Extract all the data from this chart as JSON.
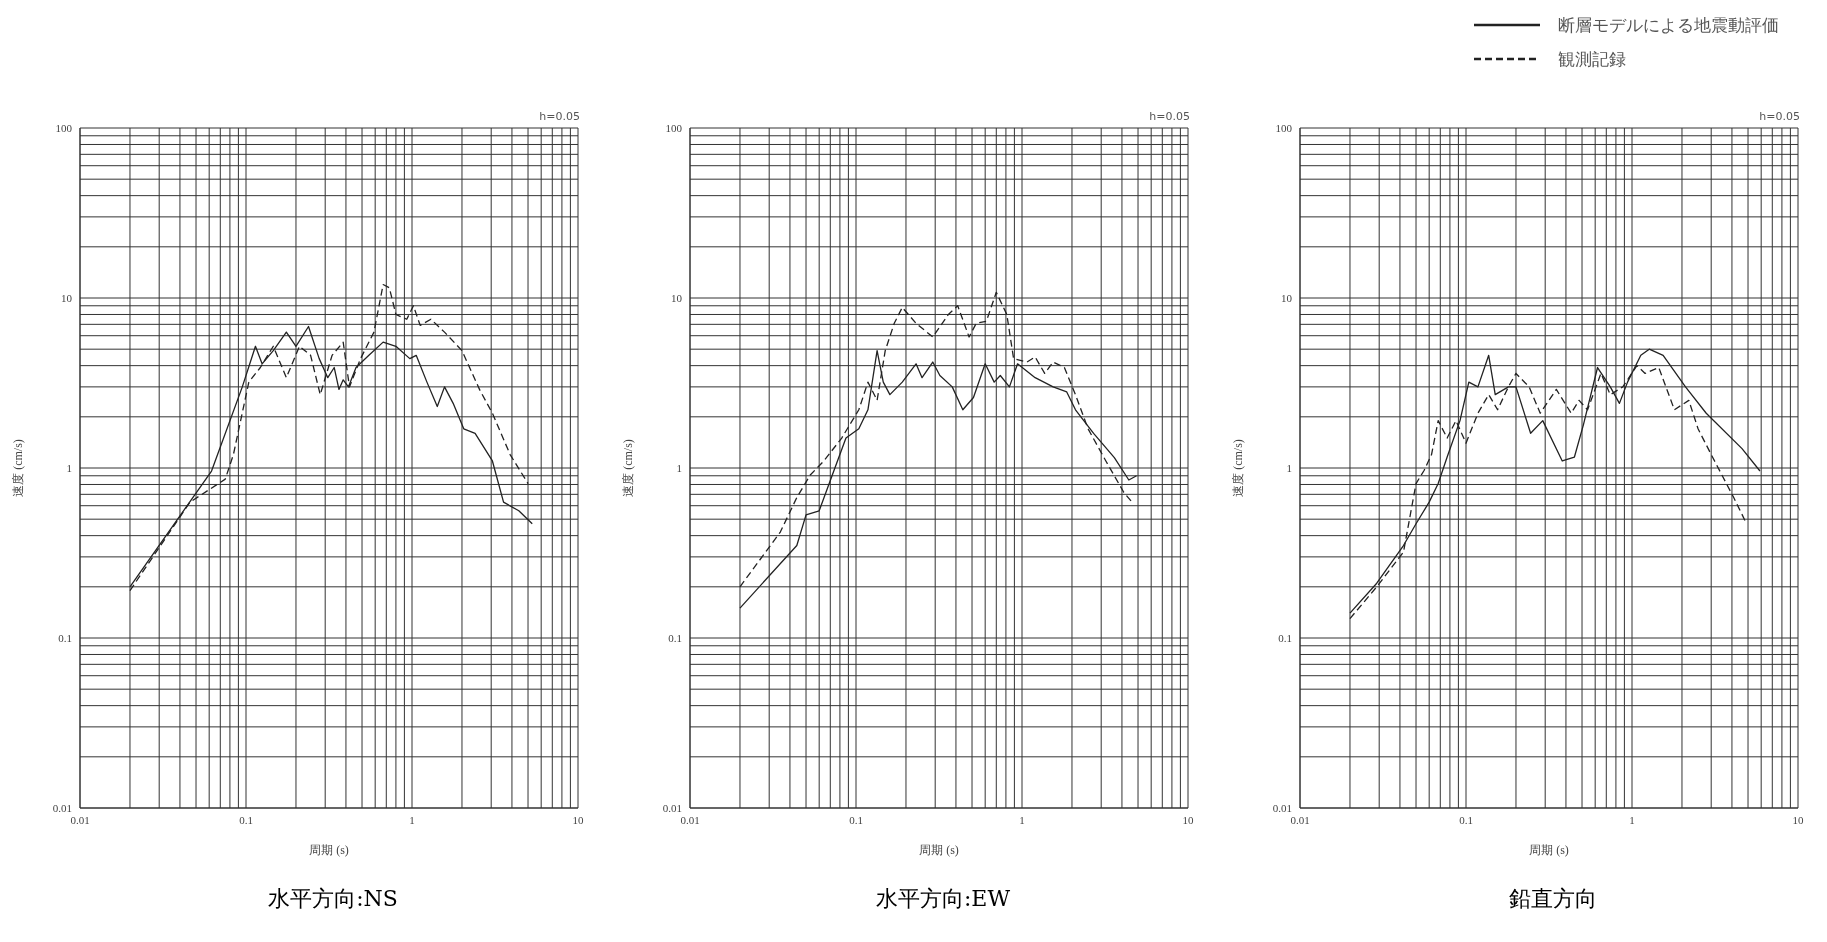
{
  "chart_data": [
    {
      "type": "line",
      "title": "水平方向:NS",
      "xlabel": "周期 (s)",
      "ylabel": "速度 (cm/s)",
      "annotations": [
        "h=0.05"
      ],
      "log": "xy",
      "grid": true,
      "legend": false,
      "xlim": [
        0.01,
        10
      ],
      "ylim": [
        0.01,
        100
      ],
      "xticks": [
        0.01,
        {
          "value": 0.02,
          "label": null
        },
        {
          "value": 0.03,
          "label": null
        },
        {
          "value": 0.04,
          "label": null
        },
        {
          "value": 0.05,
          "label": null
        },
        {
          "value": 0.06,
          "label": null
        },
        {
          "value": 0.07,
          "label": null
        },
        {
          "value": 0.08,
          "label": null
        },
        {
          "value": 0.09,
          "label": null
        },
        0.1,
        {
          "value": 0.2,
          "label": null
        },
        {
          "value": 0.3,
          "label": null
        },
        {
          "value": 0.4,
          "label": null
        },
        {
          "value": 0.5,
          "label": null
        },
        {
          "value": 0.6,
          "label": null
        },
        {
          "value": 0.7,
          "label": null
        },
        {
          "value": 0.8,
          "label": null
        },
        {
          "value": 0.9,
          "label": null
        },
        1,
        {
          "value": 2,
          "label": null
        },
        {
          "value": 3,
          "label": null
        },
        {
          "value": 4,
          "label": null
        },
        {
          "value": 5,
          "label": null
        },
        {
          "value": 6,
          "label": null
        },
        {
          "value": 7,
          "label": null
        },
        {
          "value": 8,
          "label": null
        },
        {
          "value": 9,
          "label": null
        },
        10
      ],
      "yticks": [
        0.01,
        {
          "value": 0.02,
          "label": null
        },
        {
          "value": 0.03,
          "label": null
        },
        {
          "value": 0.04,
          "label": null
        },
        {
          "value": 0.05,
          "label": null
        },
        {
          "value": 0.06,
          "label": null
        },
        {
          "value": 0.07,
          "label": null
        },
        {
          "value": 0.08,
          "label": null
        },
        {
          "value": 0.09,
          "label": null
        },
        0.1,
        {
          "value": 0.2,
          "label": null
        },
        {
          "value": 0.3,
          "label": null
        },
        {
          "value": 0.4,
          "label": null
        },
        {
          "value": 0.5,
          "label": null
        },
        {
          "value": 0.6,
          "label": null
        },
        {
          "value": 0.7,
          "label": null
        },
        {
          "value": 0.8,
          "label": null
        },
        {
          "value": 0.9,
          "label": null
        },
        1,
        {
          "value": 2,
          "label": null
        },
        {
          "value": 3,
          "label": null
        },
        {
          "value": 4,
          "label": null
        },
        {
          "value": 5,
          "label": null
        },
        {
          "value": 6,
          "label": null
        },
        {
          "value": 7,
          "label": null
        },
        {
          "value": 8,
          "label": null
        },
        {
          "value": 9,
          "label": null
        },
        10,
        {
          "value": 20,
          "label": null
        },
        {
          "value": 30,
          "label": null
        },
        {
          "value": 40,
          "label": null
        },
        {
          "value": 50,
          "label": null
        },
        {
          "value": 60,
          "label": null
        },
        {
          "value": 70,
          "label": null
        },
        {
          "value": 80,
          "label": null
        },
        {
          "value": 90,
          "label": null
        },
        100
      ],
      "series": [
        {
          "color": "#222222",
          "line_style": "solid",
          "x": [
            0.02,
            0.062,
            0.095,
            0.114,
            0.125,
            0.146,
            0.175,
            0.2,
            0.238,
            0.276,
            0.311,
            0.34,
            0.363,
            0.385,
            0.414,
            0.46,
            0.55,
            0.67,
            0.8,
            0.97,
            1.06,
            1.23,
            1.42,
            1.57,
            1.77,
            2.05,
            2.4,
            3.05,
            3.56,
            4.4,
            5.3
          ],
          "values": [
            0.2,
            0.96,
            3.0,
            5.2,
            4.1,
            4.9,
            6.3,
            5.2,
            6.8,
            4.4,
            3.4,
            3.9,
            2.9,
            3.3,
            3.0,
            3.9,
            4.6,
            5.5,
            5.2,
            4.4,
            4.6,
            3.2,
            2.3,
            3.0,
            2.4,
            1.7,
            1.6,
            1.1,
            0.63,
            0.56,
            0.47
          ]
        },
        {
          "color": "#222222",
          "line_style": "dashed",
          "x": [
            0.02,
            0.046,
            0.075,
            0.084,
            0.104,
            0.122,
            0.146,
            0.175,
            0.21,
            0.245,
            0.28,
            0.33,
            0.385,
            0.42,
            0.49,
            0.59,
            0.67,
            0.73,
            0.8,
            0.93,
            1.02,
            1.12,
            1.3,
            1.57,
            2.0,
            2.55,
            3.05,
            3.9,
            5.0
          ],
          "values": [
            0.19,
            0.63,
            0.86,
            1.2,
            3.2,
            3.9,
            5.2,
            3.4,
            5.2,
            4.6,
            2.7,
            4.6,
            5.5,
            3.0,
            4.4,
            6.3,
            12,
            11.5,
            8.0,
            7.5,
            9.0,
            6.9,
            7.5,
            6.3,
            4.9,
            2.9,
            2.1,
            1.2,
            0.81
          ]
        }
      ]
    },
    {
      "type": "line",
      "title": "水平方向:EW",
      "xlabel": "周期 (s)",
      "ylabel": "速度 (cm/s)",
      "annotations": [
        "h=0.05"
      ],
      "log": "xy",
      "grid": true,
      "legend": false,
      "xlim": [
        0.01,
        10
      ],
      "ylim": [
        0.01,
        100
      ],
      "xticks": [
        0.01,
        {
          "value": 0.02,
          "label": null
        },
        {
          "value": 0.03,
          "label": null
        },
        {
          "value": 0.04,
          "label": null
        },
        {
          "value": 0.05,
          "label": null
        },
        {
          "value": 0.06,
          "label": null
        },
        {
          "value": 0.07,
          "label": null
        },
        {
          "value": 0.08,
          "label": null
        },
        {
          "value": 0.09,
          "label": null
        },
        0.1,
        {
          "value": 0.2,
          "label": null
        },
        {
          "value": 0.3,
          "label": null
        },
        {
          "value": 0.4,
          "label": null
        },
        {
          "value": 0.5,
          "label": null
        },
        {
          "value": 0.6,
          "label": null
        },
        {
          "value": 0.7,
          "label": null
        },
        {
          "value": 0.8,
          "label": null
        },
        {
          "value": 0.9,
          "label": null
        },
        1,
        {
          "value": 2,
          "label": null
        },
        {
          "value": 3,
          "label": null
        },
        {
          "value": 4,
          "label": null
        },
        {
          "value": 5,
          "label": null
        },
        {
          "value": 6,
          "label": null
        },
        {
          "value": 7,
          "label": null
        },
        {
          "value": 8,
          "label": null
        },
        {
          "value": 9,
          "label": null
        },
        10
      ],
      "yticks": [
        0.01,
        {
          "value": 0.02,
          "label": null
        },
        {
          "value": 0.03,
          "label": null
        },
        {
          "value": 0.04,
          "label": null
        },
        {
          "value": 0.05,
          "label": null
        },
        {
          "value": 0.06,
          "label": null
        },
        {
          "value": 0.07,
          "label": null
        },
        {
          "value": 0.08,
          "label": null
        },
        {
          "value": 0.09,
          "label": null
        },
        0.1,
        {
          "value": 0.2,
          "label": null
        },
        {
          "value": 0.3,
          "label": null
        },
        {
          "value": 0.4,
          "label": null
        },
        {
          "value": 0.5,
          "label": null
        },
        {
          "value": 0.6,
          "label": null
        },
        {
          "value": 0.7,
          "label": null
        },
        {
          "value": 0.8,
          "label": null
        },
        {
          "value": 0.9,
          "label": null
        },
        1,
        {
          "value": 2,
          "label": null
        },
        {
          "value": 3,
          "label": null
        },
        {
          "value": 4,
          "label": null
        },
        {
          "value": 5,
          "label": null
        },
        {
          "value": 6,
          "label": null
        },
        {
          "value": 7,
          "label": null
        },
        {
          "value": 8,
          "label": null
        },
        {
          "value": 9,
          "label": null
        },
        10,
        {
          "value": 20,
          "label": null
        },
        {
          "value": 30,
          "label": null
        },
        {
          "value": 40,
          "label": null
        },
        {
          "value": 50,
          "label": null
        },
        {
          "value": 60,
          "label": null
        },
        {
          "value": 70,
          "label": null
        },
        {
          "value": 80,
          "label": null
        },
        {
          "value": 90,
          "label": null
        },
        100
      ],
      "series": [
        {
          "color": "#222222",
          "line_style": "solid",
          "x": [
            0.02,
            0.044,
            0.05,
            0.06,
            0.072,
            0.087,
            0.104,
            0.118,
            0.134,
            0.146,
            0.16,
            0.19,
            0.23,
            0.25,
            0.29,
            0.32,
            0.38,
            0.44,
            0.51,
            0.6,
            0.68,
            0.74,
            0.84,
            0.94,
            1.2,
            1.54,
            1.86,
            2.1,
            2.7,
            3.6,
            4.4,
            4.9
          ],
          "values": [
            0.15,
            0.35,
            0.53,
            0.56,
            0.91,
            1.5,
            1.7,
            2.2,
            4.9,
            3.2,
            2.7,
            3.2,
            4.1,
            3.4,
            4.2,
            3.5,
            3.0,
            2.2,
            2.6,
            4.1,
            3.2,
            3.5,
            3.0,
            4.1,
            3.4,
            3.0,
            2.8,
            2.2,
            1.6,
            1.15,
            0.85,
            0.9
          ]
        },
        {
          "color": "#222222",
          "line_style": "dashed",
          "x": [
            0.02,
            0.035,
            0.044,
            0.053,
            0.064,
            0.082,
            0.104,
            0.118,
            0.134,
            0.15,
            0.17,
            0.19,
            0.23,
            0.29,
            0.36,
            0.41,
            0.48,
            0.53,
            0.61,
            0.7,
            0.81,
            0.89,
            1.07,
            1.2,
            1.37,
            1.54,
            1.8,
            2.1,
            2.5,
            3.2,
            4.1,
            4.6
          ],
          "values": [
            0.2,
            0.42,
            0.67,
            0.91,
            1.1,
            1.5,
            2.2,
            3.2,
            2.5,
            4.9,
            7.1,
            8.8,
            7.1,
            5.9,
            8.0,
            9.0,
            5.9,
            7.1,
            7.3,
            10.8,
            8.0,
            4.4,
            4.2,
            4.5,
            3.6,
            4.2,
            3.9,
            2.7,
            1.7,
            1.1,
            0.72,
            0.63
          ]
        }
      ]
    },
    {
      "type": "line",
      "title": "鉛直方向",
      "xlabel": "周期 (s)",
      "ylabel": "速度 (cm/s)",
      "annotations": [
        "h=0.05"
      ],
      "log": "xy",
      "grid": true,
      "legend": "top right",
      "xlim": [
        0.01,
        10
      ],
      "ylim": [
        0.01,
        100
      ],
      "xticks": [
        0.01,
        {
          "value": 0.02,
          "label": null
        },
        {
          "value": 0.03,
          "label": null
        },
        {
          "value": 0.04,
          "label": null
        },
        {
          "value": 0.05,
          "label": null
        },
        {
          "value": 0.06,
          "label": null
        },
        {
          "value": 0.07,
          "label": null
        },
        {
          "value": 0.08,
          "label": null
        },
        {
          "value": 0.09,
          "label": null
        },
        0.1,
        {
          "value": 0.2,
          "label": null
        },
        {
          "value": 0.3,
          "label": null
        },
        {
          "value": 0.4,
          "label": null
        },
        {
          "value": 0.5,
          "label": null
        },
        {
          "value": 0.6,
          "label": null
        },
        {
          "value": 0.7,
          "label": null
        },
        {
          "value": 0.8,
          "label": null
        },
        {
          "value": 0.9,
          "label": null
        },
        1,
        {
          "value": 2,
          "label": null
        },
        {
          "value": 3,
          "label": null
        },
        {
          "value": 4,
          "label": null
        },
        {
          "value": 5,
          "label": null
        },
        {
          "value": 6,
          "label": null
        },
        {
          "value": 7,
          "label": null
        },
        {
          "value": 8,
          "label": null
        },
        {
          "value": 9,
          "label": null
        },
        10
      ],
      "yticks": [
        0.01,
        {
          "value": 0.02,
          "label": null
        },
        {
          "value": 0.03,
          "label": null
        },
        {
          "value": 0.04,
          "label": null
        },
        {
          "value": 0.05,
          "label": null
        },
        {
          "value": 0.06,
          "label": null
        },
        {
          "value": 0.07,
          "label": null
        },
        {
          "value": 0.08,
          "label": null
        },
        {
          "value": 0.09,
          "label": null
        },
        0.1,
        {
          "value": 0.2,
          "label": null
        },
        {
          "value": 0.3,
          "label": null
        },
        {
          "value": 0.4,
          "label": null
        },
        {
          "value": 0.5,
          "label": null
        },
        {
          "value": 0.6,
          "label": null
        },
        {
          "value": 0.7,
          "label": null
        },
        {
          "value": 0.8,
          "label": null
        },
        {
          "value": 0.9,
          "label": null
        },
        1,
        {
          "value": 2,
          "label": null
        },
        {
          "value": 3,
          "label": null
        },
        {
          "value": 4,
          "label": null
        },
        {
          "value": 5,
          "label": null
        },
        {
          "value": 6,
          "label": null
        },
        {
          "value": 7,
          "label": null
        },
        {
          "value": 8,
          "label": null
        },
        {
          "value": 9,
          "label": null
        },
        10,
        {
          "value": 20,
          "label": null
        },
        {
          "value": 30,
          "label": null
        },
        {
          "value": 40,
          "label": null
        },
        {
          "value": 50,
          "label": null
        },
        {
          "value": 60,
          "label": null
        },
        {
          "value": 70,
          "label": null
        },
        {
          "value": 80,
          "label": null
        },
        {
          "value": 90,
          "label": null
        },
        100
      ],
      "series": [
        {
          "name": "断層モデルによる地震動評価",
          "color": "#222222",
          "line_style": "solid",
          "x": [
            0.02,
            0.029,
            0.042,
            0.05,
            0.06,
            0.068,
            0.077,
            0.092,
            0.104,
            0.118,
            0.137,
            0.15,
            0.18,
            0.2,
            0.245,
            0.29,
            0.38,
            0.45,
            0.51,
            0.62,
            0.74,
            0.84,
            0.94,
            1.13,
            1.27,
            1.54,
            2.1,
            2.8,
            4.6,
            5.9
          ],
          "values": [
            0.14,
            0.21,
            0.35,
            0.47,
            0.63,
            0.81,
            1.16,
            1.9,
            3.2,
            3.0,
            4.6,
            2.7,
            3.0,
            3.0,
            1.6,
            1.9,
            1.1,
            1.16,
            1.8,
            3.9,
            3.0,
            2.4,
            3.2,
            4.6,
            5.0,
            4.6,
            3.0,
            2.1,
            1.3,
            0.96
          ]
        },
        {
          "name": "観測記録",
          "color": "#222222",
          "line_style": "dashed",
          "x": [
            0.02,
            0.029,
            0.042,
            0.05,
            0.056,
            0.062,
            0.068,
            0.077,
            0.087,
            0.1,
            0.118,
            0.137,
            0.155,
            0.18,
            0.2,
            0.24,
            0.28,
            0.35,
            0.43,
            0.48,
            0.54,
            0.65,
            0.74,
            0.88,
            1.07,
            1.2,
            1.45,
            1.8,
            2.2,
            2.5,
            3.0,
            4.1,
            4.9
          ],
          "values": [
            0.13,
            0.2,
            0.32,
            0.81,
            0.97,
            1.2,
            1.9,
            1.5,
            1.9,
            1.4,
            2.1,
            2.7,
            2.2,
            3.0,
            3.6,
            3.0,
            2.1,
            2.9,
            2.1,
            2.5,
            2.2,
            3.6,
            2.7,
            3.0,
            4.0,
            3.6,
            3.9,
            2.2,
            2.5,
            1.7,
            1.2,
            0.67,
            0.47
          ]
        }
      ]
    }
  ]
}
